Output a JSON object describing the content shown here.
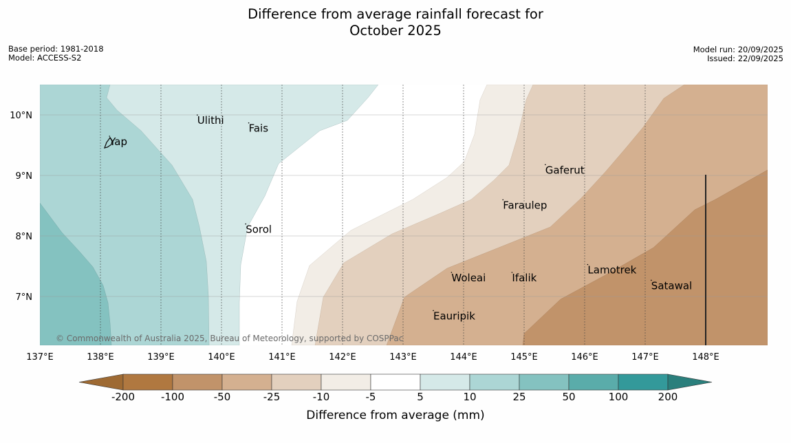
{
  "header": {
    "title_line1": "Difference from average rainfall forecast for",
    "title_line2": "October 2025",
    "base_period": "Base period: 1981-2018",
    "model": "Model: ACCESS-S2",
    "model_run": "Model run: 20/09/2025",
    "issued": "Issued: 22/09/2025"
  },
  "map": {
    "copyright": "© Commonwealth of Australia 2025, Bureau of Meteorology, supported by COSPPac",
    "lon_labels": [
      "137°E",
      "138°E",
      "139°E",
      "140°E",
      "141°E",
      "142°E",
      "143°E",
      "144°E",
      "145°E",
      "146°E",
      "147°E",
      "148°E"
    ],
    "lat_labels": [
      "10°N",
      "9°N",
      "8°N",
      "7°N"
    ],
    "lon_range": [
      137,
      149
    ],
    "lat_range": [
      6.2,
      10.5
    ],
    "places": [
      {
        "name": "Ulithi",
        "lon": 139.6,
        "lat": 9.85
      },
      {
        "name": "Fais",
        "lon": 140.45,
        "lat": 9.72
      },
      {
        "name": "Yap",
        "lon": 138.15,
        "lat": 9.5
      },
      {
        "name": "Sorol",
        "lon": 140.4,
        "lat": 8.05
      },
      {
        "name": "Gaferut",
        "lon": 145.35,
        "lat": 9.03
      },
      {
        "name": "Faraulep",
        "lon": 144.65,
        "lat": 8.45
      },
      {
        "name": "Lamotrek",
        "lon": 146.05,
        "lat": 7.38
      },
      {
        "name": "Woleai",
        "lon": 143.8,
        "lat": 7.25
      },
      {
        "name": "Ifalik",
        "lon": 144.8,
        "lat": 7.25
      },
      {
        "name": "Satawal",
        "lon": 147.1,
        "lat": 7.12
      },
      {
        "name": "Eauripik",
        "lon": 143.5,
        "lat": 6.62
      }
    ]
  },
  "colorbar": {
    "title": "Difference from average (mm)",
    "ticks": [
      "-200",
      "-100",
      "-50",
      "-25",
      "-10",
      "-5",
      "5",
      "10",
      "25",
      "50",
      "100",
      "200"
    ],
    "colors": [
      "#b07840",
      "#c1936a",
      "#d4b090",
      "#e3d0be",
      "#f2ede6",
      "#ffffff",
      "#d5e9e8",
      "#acd6d5",
      "#84c2c0",
      "#5aacaa",
      "#33999a"
    ],
    "under_color": "#9e6a33",
    "over_color": "#2a7f7c"
  }
}
